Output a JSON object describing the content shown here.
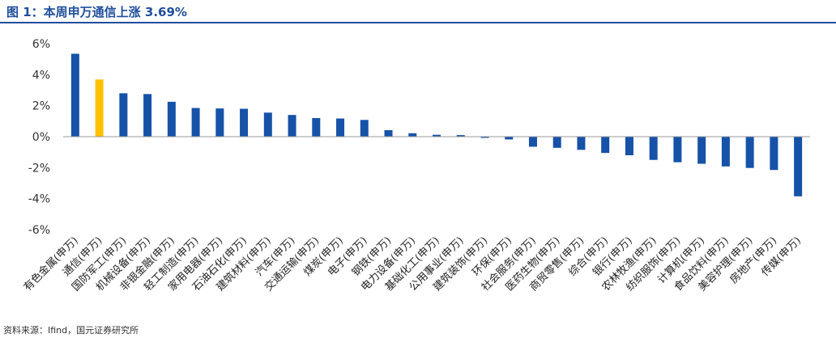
{
  "figure": {
    "title": "图 1：本周申万通信上涨 3.69%",
    "source": "资料来源：Ifind，国元证券研究所"
  },
  "colors": {
    "bar": "#1652a8",
    "highlight": "#ffc000",
    "title": "#1f4e9c"
  },
  "chart_data": {
    "type": "bar",
    "categories": [
      "有色金属(申万)",
      "通信(申万)",
      "国防军工(申万)",
      "机械设备(申万)",
      "非银金融(申万)",
      "轻工制造(申万)",
      "家用电器(申万)",
      "石油石化(申万)",
      "建筑材料(申万)",
      "汽车(申万)",
      "交通运输(申万)",
      "煤炭(申万)",
      "电子(申万)",
      "钢铁(申万)",
      "电力设备(申万)",
      "基础化工(申万)",
      "公用事业(申万)",
      "建筑装饰(申万)",
      "环保(申万)",
      "社会服务(申万)",
      "医药生物(申万)",
      "商贸零售(申万)",
      "综合(申万)",
      "银行(申万)",
      "农林牧渔(申万)",
      "纺织服饰(申万)",
      "计算机(申万)",
      "食品饮料(申万)",
      "美容护理(申万)",
      "房地产(申万)",
      "传媒(申万)"
    ],
    "values": [
      5.35,
      3.69,
      2.8,
      2.75,
      2.25,
      1.85,
      1.82,
      1.8,
      1.55,
      1.4,
      1.2,
      1.17,
      1.08,
      0.42,
      0.22,
      0.12,
      0.1,
      -0.08,
      -0.18,
      -0.65,
      -0.72,
      -0.85,
      -1.05,
      -1.2,
      -1.5,
      -1.65,
      -1.75,
      -1.92,
      -2.02,
      -2.15,
      -3.85
    ],
    "highlight_index": 1,
    "yticks": [
      "6%",
      "4%",
      "2%",
      "0%",
      "-2%",
      "-4%",
      "-6%"
    ],
    "ylim": [
      -6,
      6
    ],
    "grid": false
  }
}
